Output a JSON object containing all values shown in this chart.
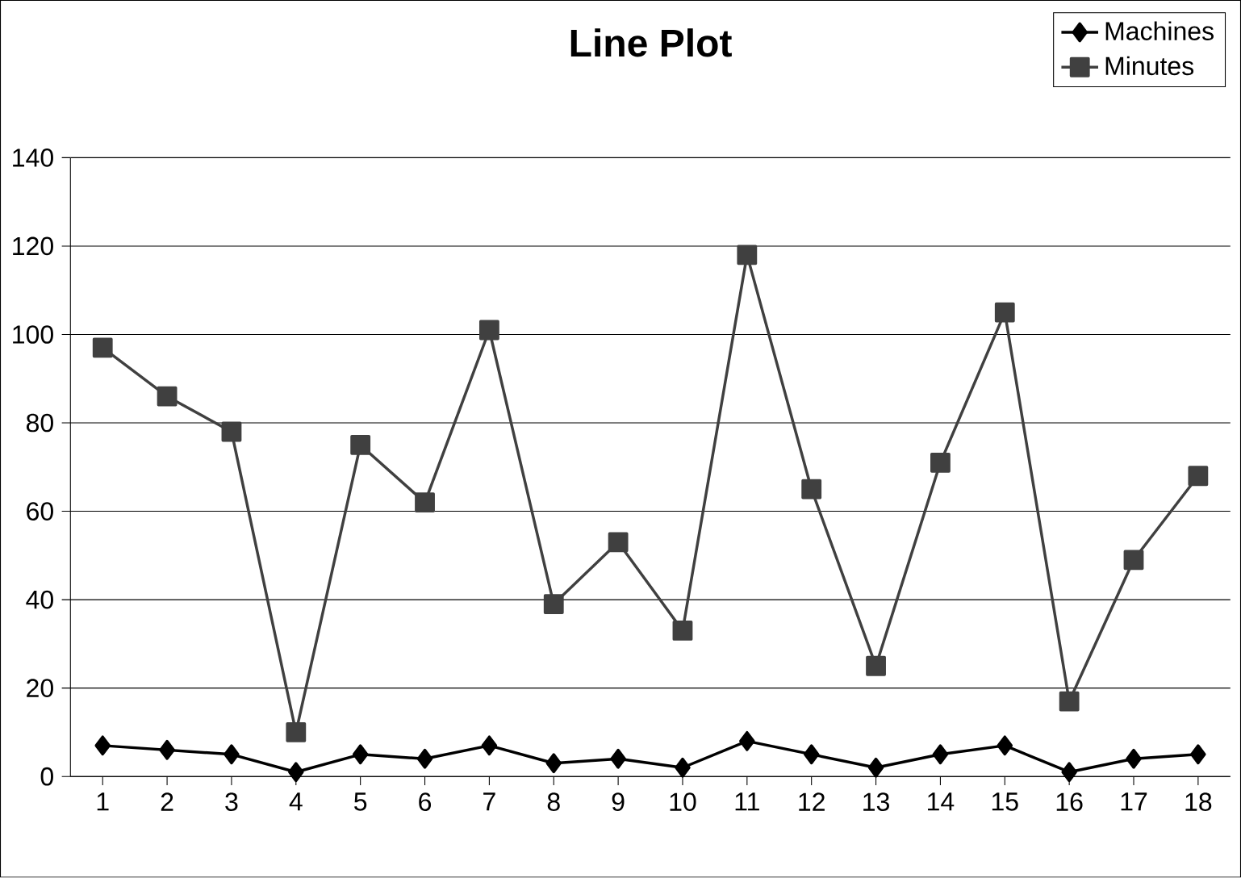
{
  "chart_data": {
    "type": "line",
    "title": "Line Plot",
    "categories": [
      "1",
      "2",
      "3",
      "4",
      "5",
      "6",
      "7",
      "8",
      "9",
      "10",
      "11",
      "12",
      "13",
      "14",
      "15",
      "16",
      "17",
      "18"
    ],
    "series": [
      {
        "name": "Machines",
        "color": "#000000",
        "marker": "diamond",
        "values": [
          7,
          6,
          5,
          1,
          5,
          4,
          7,
          3,
          4,
          2,
          8,
          5,
          2,
          5,
          7,
          1,
          4,
          5
        ]
      },
      {
        "name": "Minutes",
        "color": "#404040",
        "marker": "square",
        "values": [
          97,
          86,
          78,
          10,
          75,
          62,
          101,
          39,
          53,
          33,
          118,
          65,
          25,
          71,
          105,
          17,
          49,
          68
        ]
      }
    ],
    "ylim": [
      0,
      140
    ],
    "yticks": [
      0,
      20,
      40,
      60,
      80,
      100,
      120,
      140
    ],
    "grid": "y",
    "legend": "top right",
    "line_style": "solid"
  }
}
